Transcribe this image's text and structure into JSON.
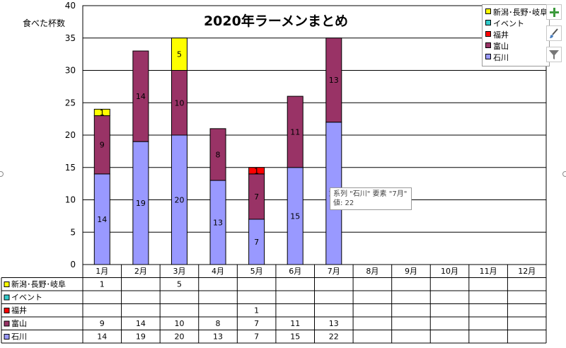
{
  "chart_data": {
    "type": "bar",
    "stacked": true,
    "title": "2020年ラーメンまとめ",
    "ylabel": "食べた杯数",
    "xlabel": "",
    "ylim": [
      0,
      40
    ],
    "yticks": [
      "0",
      "5",
      "10",
      "15",
      "20",
      "25",
      "30",
      "35",
      "40"
    ],
    "grid": true,
    "legend_position": "top-right",
    "categories": [
      "1月",
      "2月",
      "3月",
      "4月",
      "5月",
      "6月",
      "7月",
      "8月",
      "9月",
      "10月",
      "11月",
      "12月"
    ],
    "series": [
      {
        "name": "石川",
        "color": "#9999ff",
        "values": [
          14,
          19,
          20,
          13,
          7,
          15,
          22,
          null,
          null,
          null,
          null,
          null
        ]
      },
      {
        "name": "富山",
        "color": "#993366",
        "values": [
          9,
          14,
          10,
          8,
          7,
          11,
          13,
          null,
          null,
          null,
          null,
          null
        ]
      },
      {
        "name": "福井",
        "color": "#ff0000",
        "values": [
          null,
          null,
          null,
          null,
          1,
          null,
          null,
          null,
          null,
          null,
          null,
          null
        ]
      },
      {
        "name": "イベント",
        "color": "#33cccc",
        "values": [
          null,
          null,
          null,
          null,
          null,
          null,
          null,
          null,
          null,
          null,
          null,
          null
        ]
      },
      {
        "name": "新潟･長野･岐阜",
        "color": "#ffff00",
        "values": [
          1,
          null,
          5,
          null,
          null,
          null,
          null,
          null,
          null,
          null,
          null,
          null
        ]
      }
    ],
    "data_table": true
  },
  "tooltip": {
    "line1": "系列 \"石川\" 要素 \"7月\"",
    "line2": "値: 22"
  },
  "side_buttons": [
    "plus-icon",
    "brush-icon",
    "filter-icon"
  ]
}
